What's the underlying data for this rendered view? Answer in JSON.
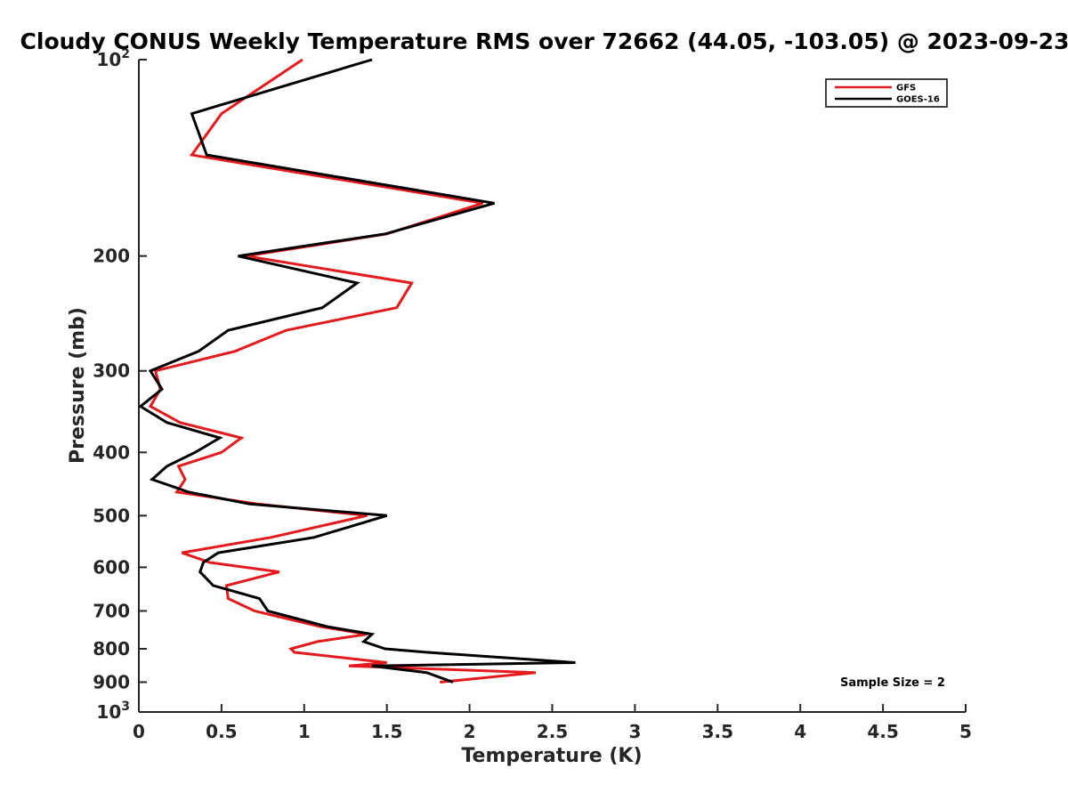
{
  "chart_data": {
    "type": "line",
    "title": "Cloudy CONUS Weekly Temperature RMS over 72662 (44.05, -103.05) @ 2023-09-23",
    "xlabel": "Temperature (K)",
    "ylabel": "Pressure (mb)",
    "xlim": [
      0,
      5
    ],
    "ylim": [
      100,
      1000
    ],
    "y_scale": "log",
    "y_reversed": true,
    "x_ticks": [
      "0",
      "0.5",
      "1",
      "1.5",
      "2",
      "2.5",
      "3",
      "3.5",
      "4",
      "4.5",
      "5"
    ],
    "x_tick_values": [
      0,
      0.5,
      1,
      1.5,
      2,
      2.5,
      3,
      3.5,
      4,
      4.5,
      5
    ],
    "y_ticks": [
      {
        "value": 100,
        "label": "10",
        "sup": "2"
      },
      {
        "value": 200,
        "label": "200",
        "sup": ""
      },
      {
        "value": 300,
        "label": "300",
        "sup": ""
      },
      {
        "value": 400,
        "label": "400",
        "sup": ""
      },
      {
        "value": 500,
        "label": "500",
        "sup": ""
      },
      {
        "value": 600,
        "label": "600",
        "sup": ""
      },
      {
        "value": 700,
        "label": "700",
        "sup": ""
      },
      {
        "value": 800,
        "label": "800",
        "sup": ""
      },
      {
        "value": 900,
        "label": "900",
        "sup": ""
      },
      {
        "value": 1000,
        "label": "10",
        "sup": "3"
      }
    ],
    "grid": false,
    "legend_position": "top-right",
    "annotation": "Sample Size = 2",
    "series": [
      {
        "name": "GFS",
        "color": "#e41a1c",
        "points": [
          [
            0.99,
            100
          ],
          [
            0.5,
            121
          ],
          [
            0.32,
            140
          ],
          [
            2.08,
            166
          ],
          [
            1.5,
            185
          ],
          [
            0.65,
            200
          ],
          [
            1.65,
            220
          ],
          [
            1.56,
            240
          ],
          [
            0.89,
            260
          ],
          [
            0.58,
            280
          ],
          [
            0.1,
            300
          ],
          [
            0.13,
            320
          ],
          [
            0.07,
            340
          ],
          [
            0.25,
            360
          ],
          [
            0.62,
            380
          ],
          [
            0.5,
            400
          ],
          [
            0.24,
            420
          ],
          [
            0.28,
            440
          ],
          [
            0.23,
            460
          ],
          [
            0.72,
            480
          ],
          [
            1.38,
            500
          ],
          [
            0.8,
            540
          ],
          [
            0.26,
            570
          ],
          [
            0.43,
            590
          ],
          [
            0.85,
            610
          ],
          [
            0.53,
            640
          ],
          [
            0.54,
            670
          ],
          [
            0.7,
            700
          ],
          [
            1.1,
            740
          ],
          [
            1.38,
            760
          ],
          [
            1.08,
            780
          ],
          [
            0.92,
            800
          ],
          [
            0.94,
            810
          ],
          [
            1.5,
            840
          ],
          [
            1.27,
            850
          ],
          [
            2.4,
            870
          ],
          [
            1.82,
            900
          ]
        ]
      },
      {
        "name": "GOES-16",
        "color": "#000000",
        "points": [
          [
            1.41,
            100
          ],
          [
            0.32,
            121
          ],
          [
            0.41,
            140
          ],
          [
            2.15,
            166
          ],
          [
            1.49,
            185
          ],
          [
            0.6,
            200
          ],
          [
            1.32,
            220
          ],
          [
            1.11,
            240
          ],
          [
            0.54,
            260
          ],
          [
            0.36,
            280
          ],
          [
            0.07,
            300
          ],
          [
            0.14,
            320
          ],
          [
            0.01,
            340
          ],
          [
            0.17,
            360
          ],
          [
            0.49,
            380
          ],
          [
            0.34,
            400
          ],
          [
            0.17,
            420
          ],
          [
            0.08,
            440
          ],
          [
            0.3,
            460
          ],
          [
            0.67,
            480
          ],
          [
            1.5,
            500
          ],
          [
            1.06,
            540
          ],
          [
            0.48,
            570
          ],
          [
            0.39,
            590
          ],
          [
            0.37,
            610
          ],
          [
            0.45,
            640
          ],
          [
            0.73,
            670
          ],
          [
            0.78,
            700
          ],
          [
            1.14,
            740
          ],
          [
            1.41,
            760
          ],
          [
            1.36,
            780
          ],
          [
            1.49,
            800
          ],
          [
            1.74,
            810
          ],
          [
            2.64,
            840
          ],
          [
            1.41,
            850
          ],
          [
            1.74,
            870
          ],
          [
            1.9,
            900
          ]
        ]
      }
    ]
  }
}
